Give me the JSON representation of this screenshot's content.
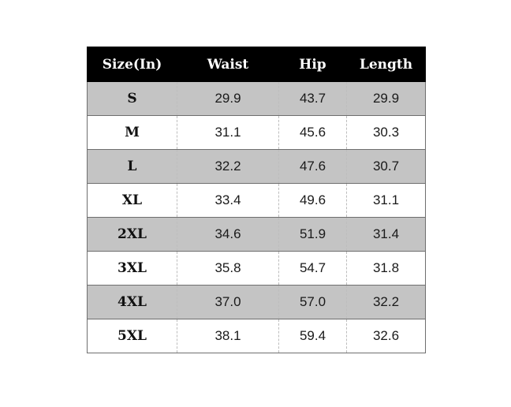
{
  "table": {
    "headers": [
      "Size(In)",
      "Waist",
      "Hip",
      "Length"
    ],
    "rows": [
      {
        "size": "S",
        "waist": "29.9",
        "hip": "43.7",
        "length": "29.9"
      },
      {
        "size": "M",
        "waist": "31.1",
        "hip": "45.6",
        "length": "30.3"
      },
      {
        "size": "L",
        "waist": "32.2",
        "hip": "47.6",
        "length": "30.7"
      },
      {
        "size": "XL",
        "waist": "33.4",
        "hip": "49.6",
        "length": "31.1"
      },
      {
        "size": "2XL",
        "waist": "34.6",
        "hip": "51.9",
        "length": "31.4"
      },
      {
        "size": "3XL",
        "waist": "35.8",
        "hip": "54.7",
        "length": "31.8"
      },
      {
        "size": "4XL",
        "waist": "37.0",
        "hip": "57.0",
        "length": "32.2"
      },
      {
        "size": "5XL",
        "waist": "38.1",
        "hip": "59.4",
        "length": "32.6"
      }
    ]
  },
  "colors": {
    "header_bg": "#000000",
    "header_text": "#ffffff",
    "shaded_row": "#c4c4c4",
    "plain_row": "#ffffff"
  }
}
